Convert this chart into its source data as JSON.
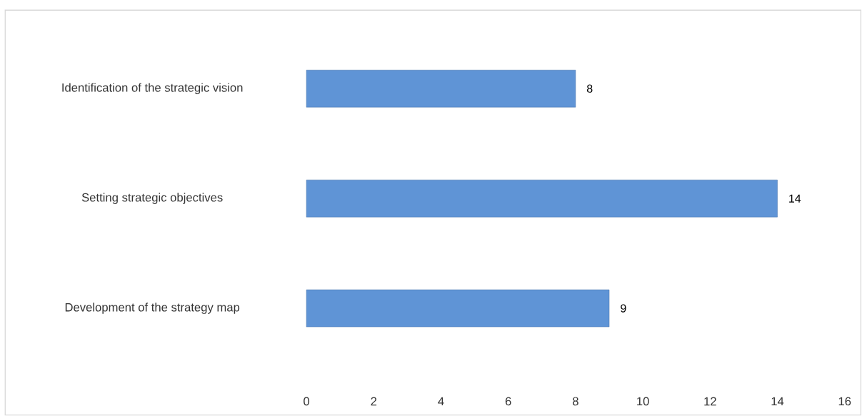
{
  "chart_data": {
    "type": "bar",
    "orientation": "horizontal",
    "categories": [
      "Identification of the strategic vision",
      "Setting strategic objectives",
      "Development of the strategy map"
    ],
    "values": [
      8,
      14,
      9
    ],
    "color": "#5f94d6",
    "xlim": [
      0,
      16
    ],
    "xticks": [
      0,
      2,
      4,
      6,
      8,
      10,
      12,
      14,
      16
    ],
    "data_labels": true,
    "grid": false
  }
}
